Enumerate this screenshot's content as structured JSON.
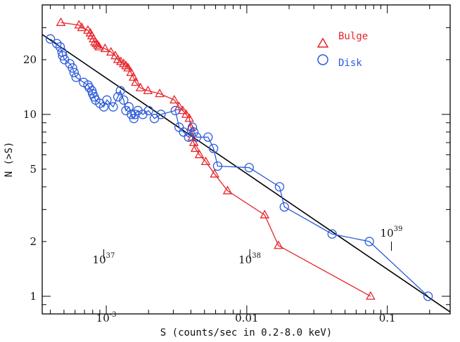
{
  "chart_data": {
    "type": "line",
    "title": "",
    "xlabel": "S (counts/sec in 0.2-8.0 keV)",
    "ylabel": "N (>S)",
    "xscale": "log",
    "yscale": "log",
    "xlim": [
      0.00035,
      0.28
    ],
    "ylim": [
      0.8,
      40
    ],
    "x_tick_labels": [
      {
        "value": 0.001,
        "base": "10",
        "exp": "-3"
      },
      {
        "value": 0.01,
        "base": "0.01",
        "exp": ""
      },
      {
        "value": 0.1,
        "base": "0.1",
        "exp": ""
      }
    ],
    "y_tick_labels": [
      {
        "value": 1,
        "label": "1"
      },
      {
        "value": 2,
        "label": "2"
      },
      {
        "value": 5,
        "label": "5"
      },
      {
        "value": 10,
        "label": "10"
      },
      {
        "value": 20,
        "label": "20"
      }
    ],
    "series": [
      {
        "name": "Bulge",
        "marker": "triangle",
        "color": "#e8242a",
        "x": [
          0.000475,
          0.00064,
          0.00067,
          0.00074,
          0.00077,
          0.00079,
          0.00081,
          0.00083,
          0.00085,
          0.00087,
          0.00089,
          0.00098,
          0.00108,
          0.00116,
          0.00121,
          0.00127,
          0.00133,
          0.00138,
          0.00143,
          0.0015,
          0.00156,
          0.00162,
          0.00175,
          0.00198,
          0.0024,
          0.00305,
          0.0033,
          0.0035,
          0.0037,
          0.0039,
          0.004,
          0.0041,
          0.0042,
          0.0043,
          0.0046,
          0.0051,
          0.0059,
          0.0073,
          0.0134,
          0.0168,
          0.076
        ],
        "y": [
          32,
          31,
          30,
          29,
          28,
          27,
          26,
          25,
          24.5,
          24,
          23.5,
          23,
          22,
          21,
          20,
          19.5,
          19,
          18.5,
          18,
          17,
          16,
          15,
          14,
          13.5,
          13,
          12,
          11,
          10.5,
          10,
          9.5,
          8.5,
          7.5,
          7,
          6.5,
          6,
          5.5,
          4.7,
          3.8,
          2.8,
          1.9,
          1.0
        ]
      },
      {
        "name": "Disk",
        "marker": "circle",
        "color": "#2b5bd9",
        "x": [
          0.0004,
          0.000445,
          0.00047,
          0.000485,
          0.00049,
          0.000505,
          0.00055,
          0.000575,
          0.00059,
          0.00061,
          0.00069,
          0.00074,
          0.00076,
          0.00079,
          0.0008,
          0.00082,
          0.00084,
          0.0009,
          0.00096,
          0.00101,
          0.00112,
          0.00121,
          0.00126,
          0.00133,
          0.00138,
          0.00145,
          0.00151,
          0.00157,
          0.0016,
          0.00168,
          0.00182,
          0.002,
          0.0022,
          0.00245,
          0.0031,
          0.0033,
          0.00355,
          0.00385,
          0.0041,
          0.0042,
          0.0044,
          0.0053,
          0.0058,
          0.0062,
          0.0104,
          0.0171,
          0.0185,
          0.0405,
          0.0745,
          0.195
        ],
        "y": [
          26,
          24.5,
          23.5,
          22,
          21,
          20,
          19,
          18,
          17,
          16,
          15,
          14.5,
          14,
          13.5,
          13,
          12.5,
          12,
          11.5,
          11,
          12,
          11,
          12.5,
          13.5,
          12,
          10.5,
          11,
          10,
          9.5,
          10,
          10.5,
          10,
          10.5,
          9.5,
          10,
          10.5,
          8.5,
          8,
          7.5,
          8.5,
          8,
          7.5,
          7.5,
          6.5,
          5.2,
          5.1,
          4,
          3.1,
          2.2,
          2.0,
          1.0
        ]
      }
    ],
    "fit_line": {
      "name": "power-law fit",
      "color": "#000000",
      "x": [
        0.00035,
        0.28
      ],
      "y": [
        27.5,
        0.82
      ]
    },
    "legend": {
      "placement": "top-right",
      "entries": [
        "Bulge",
        "Disk"
      ]
    },
    "luminosity_markers": [
      {
        "x_value": 0.00096,
        "base": "10",
        "exp": "37"
      },
      {
        "x_value": 0.0105,
        "base": "10",
        "exp": "38"
      },
      {
        "x_value": 0.107,
        "base": "10",
        "exp": "39"
      }
    ]
  }
}
